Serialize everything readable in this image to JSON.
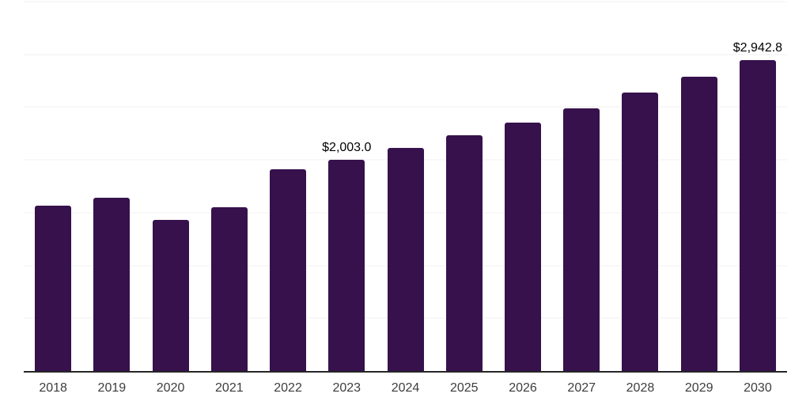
{
  "chart_data": {
    "type": "bar",
    "title": "",
    "xlabel": "",
    "ylabel": "",
    "categories": [
      "2018",
      "2019",
      "2020",
      "2021",
      "2022",
      "2023",
      "2024",
      "2025",
      "2026",
      "2027",
      "2028",
      "2029",
      "2030"
    ],
    "values": [
      1565,
      1640,
      1430,
      1550,
      1910,
      2003.0,
      2110,
      2230,
      2355,
      2490,
      2635,
      2785,
      2942.8
    ],
    "data_labels": {
      "2023": "$2,003.0",
      "2030": "$2,942.8"
    },
    "ylim": [
      0,
      3500
    ],
    "gridline_step": 500,
    "grid": "horizontal-only",
    "legend": "none",
    "y_axis_tick_labels": "none",
    "bar_color": "#36114C",
    "gridline_color": "#F2F2F2",
    "axis_line_color": "#262626",
    "tick_label_color": "#3D3D3D",
    "data_label_color": "#000000",
    "background_color": "#FFFFFF"
  }
}
